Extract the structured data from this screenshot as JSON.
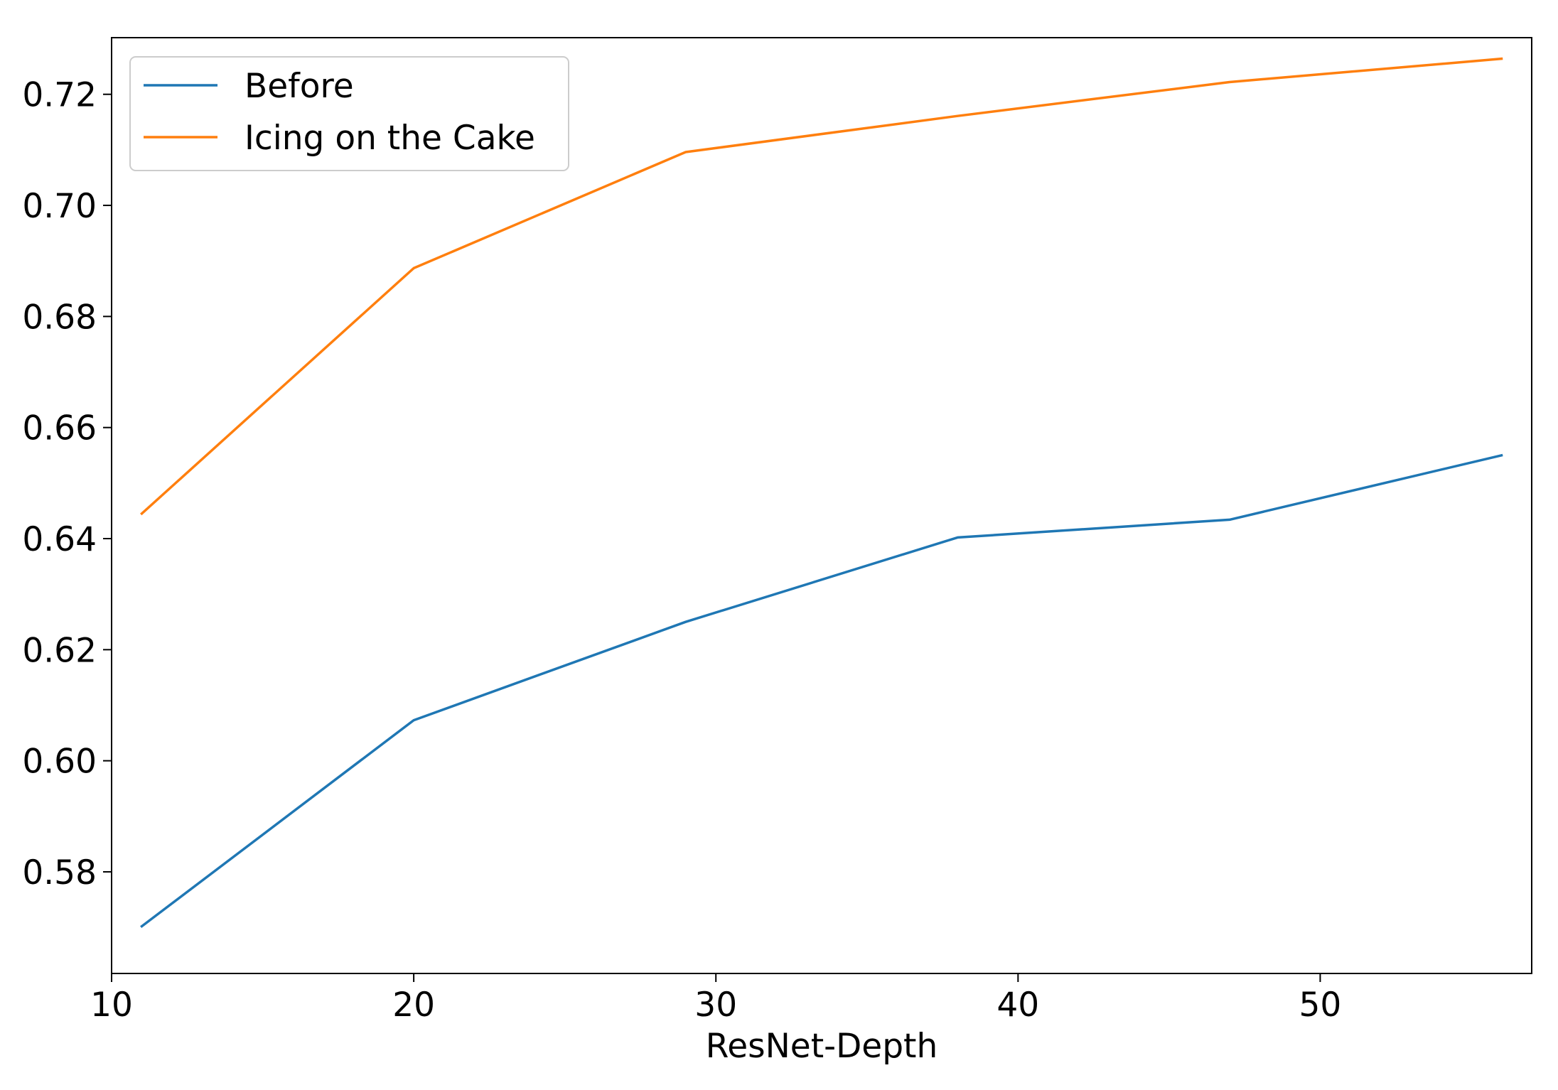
{
  "chart_data": {
    "type": "line",
    "title": "",
    "xlabel": "ResNet-Depth",
    "ylabel": "",
    "xlim": [
      10,
      57
    ],
    "ylim": [
      0.5617,
      0.7302
    ],
    "xticks": [
      10,
      20,
      30,
      40,
      50
    ],
    "xtick_labels": [
      "10",
      "20",
      "30",
      "40",
      "50"
    ],
    "yticks": [
      0.58,
      0.6,
      0.62,
      0.64,
      0.66,
      0.68,
      0.7,
      0.72
    ],
    "ytick_labels": [
      "0.58",
      "0.60",
      "0.62",
      "0.64",
      "0.66",
      "0.68",
      "0.70",
      "0.72"
    ],
    "grid": false,
    "legend_position": "top-left",
    "series": [
      {
        "name": "Before",
        "color": "#1f77b4",
        "x": [
          11,
          20,
          29,
          38,
          47,
          56
        ],
        "y": [
          0.5702,
          0.6073,
          0.625,
          0.6402,
          0.6434,
          0.655
        ]
      },
      {
        "name": "Icing on the Cake",
        "color": "#ff7f0e",
        "x": [
          11,
          20,
          29,
          38,
          47,
          56
        ],
        "y": [
          0.6445,
          0.6887,
          0.7096,
          0.7161,
          0.7222,
          0.7264
        ]
      }
    ]
  }
}
